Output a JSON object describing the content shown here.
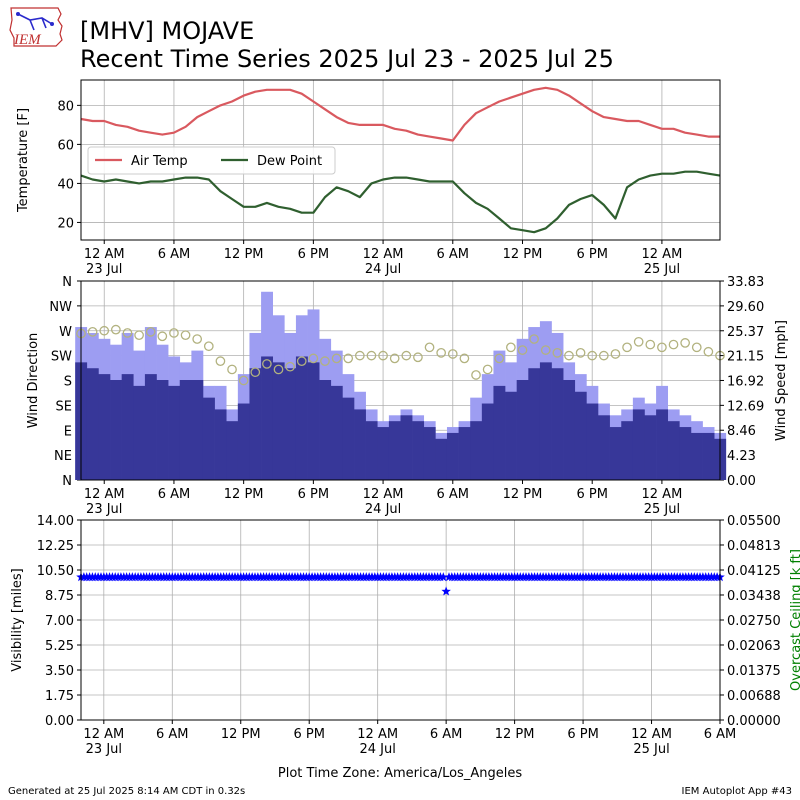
{
  "header": {
    "logo_text": "IEM",
    "title_line1": "[MHV] MOJAVE",
    "title_line2": "Recent Time Series 2025 Jul 23 - 2025 Jul 25"
  },
  "footer": {
    "generated": "Generated at 25 Jul 2025 8:14 AM CDT in 0.32s",
    "app": "IEM Autoplot App #43"
  },
  "colors": {
    "air_temp": "#d9595f",
    "dew_point": "#2f5f2f",
    "gust_bar": "#9d9df2",
    "speed_bar": "#373799",
    "direction_marker": "#b2b27f",
    "visibility_marker": "#0000ff",
    "ceiling_label": "#008000",
    "grid": "#b0b0b0"
  },
  "chart_data": [
    {
      "type": "line",
      "panel": "temperature",
      "ylabel": "Temperature [F]",
      "ylim": [
        11,
        93
      ],
      "yticks": [
        20,
        40,
        60,
        80
      ],
      "x_unit": "hours since 2025-07-23 00:00 America/Los_Angeles",
      "xlim": [
        -2,
        53
      ],
      "xticks": [
        0,
        6,
        12,
        18,
        24,
        30,
        36,
        42,
        48
      ],
      "xtick_labels": [
        "12 AM",
        "6 AM",
        "12 PM",
        "6 PM",
        "12 AM",
        "6 AM",
        "12 PM",
        "6 PM",
        "12 AM"
      ],
      "xtick_sublabels": [
        "23 Jul",
        "",
        "",
        "",
        "24 Jul",
        "",
        "",
        "",
        "25 Jul"
      ],
      "legend": {
        "placement": "center-left",
        "ncol": 2
      },
      "grid": true,
      "series": [
        {
          "name": "Air Temp",
          "x": [
            -2,
            -1,
            0,
            1,
            2,
            3,
            4,
            5,
            6,
            7,
            8,
            9,
            10,
            11,
            12,
            13,
            14,
            15,
            16,
            17,
            18,
            19,
            20,
            21,
            22,
            23,
            24,
            25,
            26,
            27,
            28,
            29,
            30,
            31,
            32,
            33,
            34,
            35,
            36,
            37,
            38,
            39,
            40,
            41,
            42,
            43,
            44,
            45,
            46,
            47,
            48,
            49,
            50,
            51,
            52,
            53
          ],
          "values": [
            73,
            72,
            72,
            70,
            69,
            67,
            66,
            65,
            66,
            69,
            74,
            77,
            80,
            82,
            85,
            87,
            88,
            88,
            88,
            86,
            82,
            78,
            74,
            71,
            70,
            70,
            70,
            68,
            67,
            65,
            64,
            63,
            62,
            70,
            76,
            79,
            82,
            84,
            86,
            88,
            89,
            88,
            85,
            81,
            77,
            74,
            73,
            72,
            72,
            70,
            68,
            68,
            66,
            65,
            64,
            64
          ]
        },
        {
          "name": "Dew Point",
          "x": [
            -2,
            -1,
            0,
            1,
            2,
            3,
            4,
            5,
            6,
            7,
            8,
            9,
            10,
            11,
            12,
            13,
            14,
            15,
            16,
            17,
            18,
            19,
            20,
            21,
            22,
            23,
            24,
            25,
            26,
            27,
            28,
            29,
            30,
            31,
            32,
            33,
            34,
            35,
            36,
            37,
            38,
            39,
            40,
            41,
            42,
            43,
            44,
            45,
            46,
            47,
            48,
            49,
            50,
            51,
            52,
            53
          ],
          "values": [
            44,
            42,
            41,
            42,
            41,
            40,
            41,
            41,
            42,
            43,
            43,
            42,
            36,
            32,
            28,
            28,
            30,
            28,
            27,
            25,
            25,
            33,
            38,
            36,
            33,
            40,
            42,
            43,
            43,
            42,
            41,
            41,
            41,
            35,
            30,
            27,
            22,
            17,
            16,
            15,
            17,
            22,
            29,
            32,
            34,
            29,
            22,
            38,
            42,
            44,
            45,
            45,
            46,
            46,
            45,
            44
          ]
        }
      ]
    },
    {
      "type": "bar",
      "panel": "wind",
      "ylabel": "Wind Direction",
      "y2label": "Wind Speed [mph]",
      "ylim": [
        0,
        360
      ],
      "yticks": [
        0,
        45,
        90,
        135,
        180,
        225,
        270,
        315,
        360
      ],
      "ytick_labels": [
        "N",
        "NE",
        "E",
        "SE",
        "S",
        "SW",
        "W",
        "NW",
        "N"
      ],
      "y2lim": [
        0,
        33.83
      ],
      "y2tick_labels": [
        "0.00",
        "4.23",
        "8.46",
        "12.69",
        "16.92",
        "21.15",
        "25.37",
        "29.60",
        "33.83"
      ],
      "xlim": [
        -2,
        53
      ],
      "grid": true,
      "series": [
        {
          "name": "gust",
          "x": [
            -2,
            -1,
            0,
            1,
            2,
            3,
            4,
            5,
            6,
            7,
            8,
            9,
            10,
            11,
            12,
            13,
            14,
            15,
            16,
            17,
            18,
            19,
            20,
            21,
            22,
            23,
            24,
            25,
            26,
            27,
            28,
            29,
            30,
            31,
            32,
            33,
            34,
            35,
            36,
            37,
            38,
            39,
            40,
            41,
            42,
            43,
            44,
            45,
            46,
            47,
            48,
            49,
            50,
            51,
            52,
            53
          ],
          "values": [
            26,
            25,
            24,
            23,
            25,
            22,
            26,
            23,
            21,
            20,
            22,
            16,
            16,
            12,
            18,
            25,
            32,
            28,
            25,
            28,
            29,
            24,
            22,
            18,
            15,
            12,
            10,
            11,
            12,
            11,
            10,
            8,
            9,
            10,
            14,
            18,
            22,
            20,
            24,
            26,
            27,
            25,
            20,
            18,
            16,
            13,
            11,
            12,
            14,
            13,
            16,
            12,
            11,
            10,
            9,
            8
          ]
        },
        {
          "name": "speed",
          "x": [
            -2,
            -1,
            0,
            1,
            2,
            3,
            4,
            5,
            6,
            7,
            8,
            9,
            10,
            11,
            12,
            13,
            14,
            15,
            16,
            17,
            18,
            19,
            20,
            21,
            22,
            23,
            24,
            25,
            26,
            27,
            28,
            29,
            30,
            31,
            32,
            33,
            34,
            35,
            36,
            37,
            38,
            39,
            40,
            41,
            42,
            43,
            44,
            45,
            46,
            47,
            48,
            49,
            50,
            51,
            52,
            53
          ],
          "values": [
            20,
            19,
            18,
            17,
            18,
            16,
            18,
            17,
            16,
            17,
            17,
            14,
            12,
            10,
            13,
            19,
            21,
            20,
            19,
            21,
            20,
            17,
            16,
            14,
            12,
            10,
            9,
            10,
            11,
            10,
            9,
            7,
            8,
            9,
            10,
            13,
            16,
            15,
            17,
            19,
            20,
            19,
            17,
            15,
            13,
            11,
            9,
            10,
            12,
            11,
            12,
            10,
            9,
            8,
            8,
            7
          ]
        },
        {
          "name": "direction",
          "x": [
            -2,
            -1,
            0,
            1,
            2,
            3,
            4,
            5,
            6,
            7,
            8,
            9,
            10,
            11,
            12,
            13,
            14,
            15,
            16,
            17,
            18,
            19,
            20,
            21,
            22,
            23,
            24,
            25,
            26,
            27,
            28,
            29,
            30,
            31,
            32,
            33,
            34,
            35,
            36,
            37,
            38,
            39,
            40,
            41,
            42,
            43,
            44,
            45,
            46,
            47,
            48,
            49,
            50,
            51,
            52,
            53
          ],
          "values": [
            265,
            268,
            270,
            272,
            266,
            262,
            268,
            260,
            266,
            262,
            255,
            242,
            215,
            200,
            180,
            195,
            210,
            200,
            205,
            215,
            220,
            215,
            220,
            220,
            225,
            225,
            225,
            220,
            225,
            222,
            240,
            230,
            228,
            220,
            190,
            200,
            220,
            240,
            235,
            255,
            235,
            230,
            225,
            230,
            225,
            225,
            228,
            240,
            250,
            245,
            240,
            245,
            248,
            240,
            232,
            225
          ]
        }
      ]
    },
    {
      "type": "scatter",
      "panel": "visibility",
      "ylabel": "Visibility [miles]",
      "y2label": "Overcast Ceiling [k ft]",
      "ylim": [
        0,
        14
      ],
      "ytick_labels": [
        "0.00",
        "1.75",
        "3.50",
        "5.25",
        "7.00",
        "8.75",
        "10.50",
        "12.25",
        "14.00"
      ],
      "y2lim": [
        0,
        0.055
      ],
      "y2tick_labels": [
        "0.00000",
        "0.00688",
        "0.01375",
        "0.02063",
        "0.02750",
        "0.03438",
        "0.04125",
        "0.04813",
        "0.05500"
      ],
      "xlim": [
        -2,
        54
      ],
      "xticks": [
        0,
        6,
        12,
        18,
        24,
        30,
        36,
        42,
        48,
        54
      ],
      "xtick_labels": [
        "12 AM",
        "6 AM",
        "12 PM",
        "6 PM",
        "12 AM",
        "6 AM",
        "12 PM",
        "6 PM",
        "12 AM",
        "6 AM"
      ],
      "xtick_sublabels": [
        "23 Jul",
        "",
        "",
        "",
        "24 Jul",
        "",
        "",
        "",
        "25 Jul",
        ""
      ],
      "xlabel": "Plot Time Zone: America/Los_Angeles",
      "grid": true,
      "series": [
        {
          "name": "visibility",
          "marker": "star",
          "constant_value": 10,
          "x_range": [
            -2,
            54
          ],
          "exceptions": [
            {
              "x": 30,
              "value": 9
            }
          ]
        }
      ]
    }
  ]
}
